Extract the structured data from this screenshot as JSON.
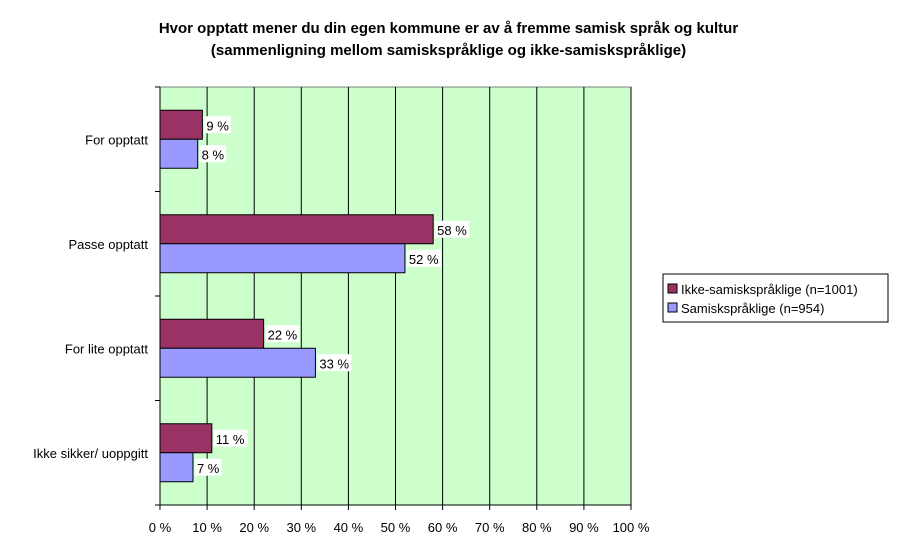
{
  "chart_data": {
    "type": "bar",
    "orientation": "horizontal",
    "title": [
      "Hvor opptatt mener du din egen kommune er av å fremme samisk språk og kultur",
      "(sammenligning mellom samiskspråklige og ikke-samiskspråklige)"
    ],
    "categories": [
      "For opptatt",
      "Passe opptatt",
      "For lite opptatt",
      "Ikke sikker/ uoppgitt"
    ],
    "series": [
      {
        "name": "Ikke-samiskspråklige (n=1001)",
        "values": [
          9,
          58,
          22,
          11
        ],
        "labels": [
          "9 %",
          "58 %",
          "22 %",
          "11 %"
        ],
        "color": "#993366"
      },
      {
        "name": "Samiskspråklige (n=954)",
        "values": [
          8,
          52,
          33,
          7
        ],
        "labels": [
          "8 %",
          "52 %",
          "33 %",
          "7 %"
        ],
        "color": "#9999ff"
      }
    ],
    "xlim": [
      0,
      100
    ],
    "xticks": [
      "0 %",
      "10 %",
      "20 %",
      "30 %",
      "40 %",
      "50 %",
      "60 %",
      "70 %",
      "80 %",
      "90 %",
      "100 %"
    ],
    "grid": true,
    "plot_background": "#ccffcc",
    "legend_position": "right"
  }
}
